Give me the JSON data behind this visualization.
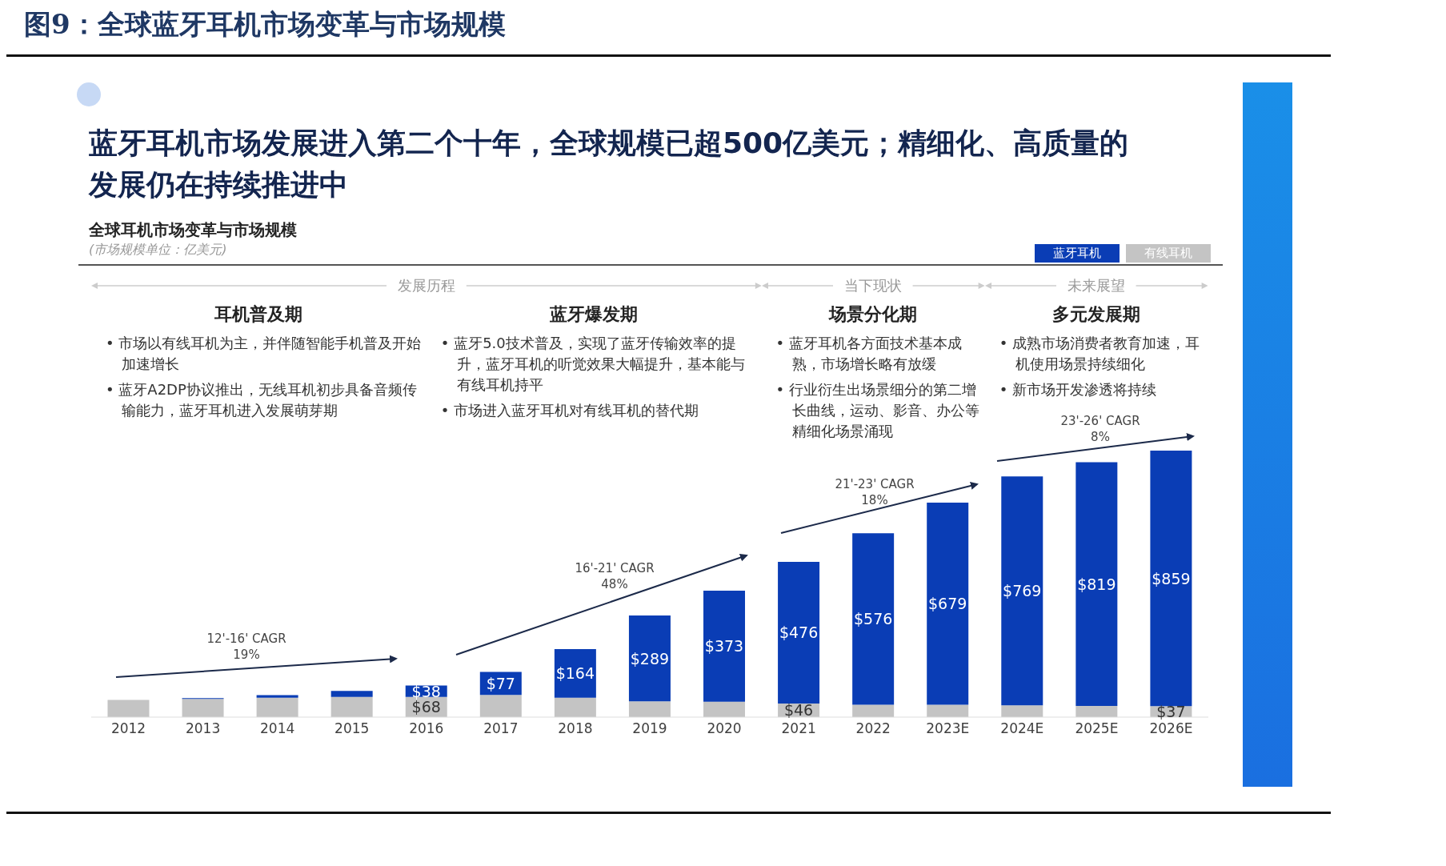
{
  "chart_data": {
    "type": "bar",
    "title": "图9：全球蓝牙耳机市场变革与市场规模",
    "subtitle": "蓝牙耳机市场发展进入第二个十年，全球规模已超500亿美元；精细化、高质量的发展仍在持续推进中",
    "categories": [
      "2012",
      "2013",
      "2014",
      "2015",
      "2016",
      "2017",
      "2018",
      "2019",
      "2020",
      "2021",
      "2022",
      "2023E",
      "2024E",
      "2025E",
      "2026E"
    ],
    "stacked": true,
    "series": [
      {
        "name": "有线耳机",
        "color": "#c4c4c4",
        "values": [
          58,
          61,
          65,
          68,
          68,
          75,
          65,
          53,
          52,
          46,
          42,
          42,
          40,
          38,
          37
        ],
        "value_labels": [
          null,
          null,
          null,
          null,
          "$68",
          null,
          null,
          null,
          null,
          "$46",
          null,
          null,
          null,
          null,
          "$37"
        ]
      },
      {
        "name": "蓝牙耳机",
        "color": "#0a3db5",
        "values": [
          0,
          3,
          9,
          20,
          38,
          77,
          164,
          289,
          373,
          476,
          576,
          679,
          769,
          819,
          859
        ],
        "value_labels": [
          null,
          null,
          null,
          null,
          "$38",
          "$77",
          "$164",
          "$289",
          "$373",
          "$476",
          "$576",
          "$679",
          "$769",
          "$819",
          "$859"
        ]
      }
    ],
    "legend": "top right",
    "annotations": [
      "全球耳机市场变革与市场规模",
      "发展历程",
      "当下现状",
      "未来展望",
      "耳机普及期",
      "蓝牙爆发期",
      "场景分化期",
      "多元发展期",
      "• 市场以有线耳机为主，并伴随智能手机普及开始加速增长",
      "• 蓝牙A2DP协议推出，无线耳机初步具备音频传输能力，蓝牙耳机进入发展萌芽期",
      "• 蓝牙5.0技术普及，实现了蓝牙传输效率的提升，蓝牙耳机的听觉效果大幅提升，基本能与有线耳机持平",
      "• 市场进入蓝牙耳机对有线耳机的替代期",
      "• 蓝牙耳机各方面技术基本成熟，市场增长略有放缓",
      "• 行业衍生出场景细分的第二增长曲线，运动、影音、办公等精细化场景涌现",
      "• 成熟市场消费者教育加速，耳机使用场景持续细化",
      "• 新市场开发渗透将持续",
      "12'-16' CAGR\n19%",
      "16'-21' CAGR\n48%",
      "21'-23' CAGR\n18%",
      "23'-26' CAGR\n8%",
      "(市场规模单位：亿美元)"
    ]
  }
}
